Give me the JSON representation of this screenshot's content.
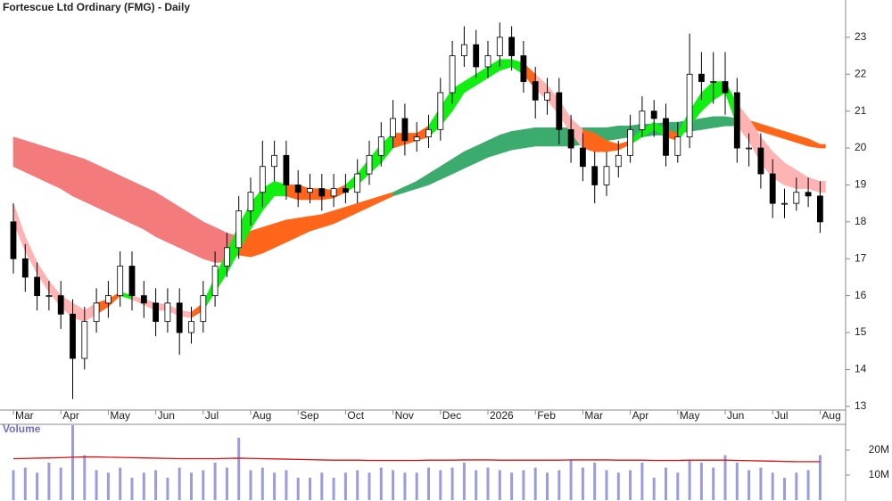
{
  "chart_data": [
    {
      "type": "candlestick",
      "title": "Fortescue Ltd Ordinary (FMG) - Daily",
      "categories": [
        "Mar",
        null,
        null,
        null,
        "Apr",
        null,
        null,
        null,
        "May",
        null,
        null,
        null,
        "Jun",
        null,
        null,
        null,
        "Jul",
        null,
        null,
        null,
        "Aug",
        null,
        null,
        null,
        "Sep",
        null,
        null,
        null,
        "Oct",
        null,
        null,
        null,
        "Nov",
        null,
        null,
        null,
        "Dec",
        null,
        null,
        null,
        "2026",
        null,
        null,
        null,
        "Feb",
        null,
        null,
        null,
        "Mar",
        null,
        null,
        null,
        "Apr",
        null,
        null,
        null,
        "May",
        null,
        null,
        null,
        "Jun",
        null,
        null,
        null,
        "Jul",
        null,
        null,
        null,
        "Aug"
      ],
      "open": [
        18.0,
        17.0,
        16.5,
        16.0,
        16.0,
        15.5,
        14.3,
        15.3,
        15.8,
        16.0,
        16.8,
        16.0,
        15.8,
        15.3,
        15.8,
        15.0,
        15.3,
        16.0,
        16.8,
        17.3,
        18.3,
        18.8,
        19.5,
        19.8,
        19.0,
        18.8,
        18.9,
        18.7,
        18.9,
        18.8,
        19.3,
        19.8,
        20.3,
        20.8,
        20.2,
        20.3,
        20.5,
        21.5,
        22.5,
        22.8,
        22.2,
        22.5,
        23.0,
        22.5,
        21.8,
        21.3,
        21.5,
        20.5,
        20.0,
        19.5,
        19.0,
        19.5,
        19.8,
        20.5,
        21.0,
        20.8,
        19.8,
        20.3,
        22.0,
        21.8,
        21.8,
        21.5,
        20.0,
        20.0,
        19.3,
        18.5,
        18.5,
        18.8,
        18.7
      ],
      "high": [
        18.5,
        17.4,
        16.9,
        16.4,
        16.4,
        15.9,
        15.7,
        16.2,
        16.4,
        17.2,
        17.2,
        16.4,
        16.2,
        16.2,
        16.2,
        15.7,
        16.4,
        17.2,
        17.7,
        18.7,
        19.2,
        20.2,
        20.2,
        20.2,
        19.4,
        19.3,
        19.3,
        19.3,
        19.3,
        19.7,
        20.2,
        20.7,
        21.3,
        21.2,
        20.7,
        20.9,
        21.9,
        22.9,
        23.3,
        23.2,
        22.9,
        23.4,
        23.3,
        22.9,
        22.2,
        21.9,
        21.9,
        20.9,
        20.4,
        19.9,
        19.9,
        20.2,
        20.9,
        21.4,
        21.3,
        21.2,
        20.7,
        23.1,
        22.6,
        22.6,
        22.6,
        21.9,
        20.4,
        20.4,
        19.7,
        18.9,
        19.2,
        19.2,
        19.1
      ],
      "low": [
        16.6,
        16.1,
        15.6,
        15.6,
        15.1,
        13.2,
        14.0,
        15.0,
        15.4,
        15.7,
        15.6,
        15.4,
        14.9,
        15.0,
        14.4,
        14.7,
        15.0,
        15.7,
        16.5,
        17.0,
        17.9,
        18.4,
        19.1,
        18.6,
        18.4,
        18.5,
        18.3,
        18.4,
        18.5,
        18.5,
        19.0,
        19.5,
        20.0,
        19.8,
        19.9,
        20.0,
        20.2,
        21.2,
        22.2,
        21.9,
        21.9,
        22.2,
        22.1,
        21.5,
        20.8,
        20.9,
        20.1,
        19.6,
        19.1,
        18.5,
        18.7,
        19.2,
        19.6,
        20.3,
        20.3,
        19.5,
        19.6,
        20.0,
        21.3,
        21.2,
        20.9,
        19.6,
        19.5,
        18.9,
        18.1,
        18.1,
        18.3,
        18.4,
        17.7
      ],
      "close": [
        17.0,
        16.5,
        16.0,
        16.0,
        15.5,
        14.3,
        15.3,
        15.8,
        16.0,
        16.8,
        16.0,
        15.8,
        15.3,
        15.8,
        15.0,
        15.3,
        16.0,
        16.8,
        17.3,
        18.3,
        18.8,
        19.5,
        19.8,
        19.0,
        18.8,
        18.9,
        18.7,
        18.9,
        18.8,
        19.3,
        19.8,
        20.3,
        20.8,
        20.2,
        20.3,
        20.5,
        21.5,
        22.5,
        22.8,
        22.2,
        22.5,
        23.0,
        22.5,
        21.8,
        21.3,
        21.5,
        20.5,
        20.0,
        19.5,
        19.0,
        19.5,
        19.8,
        20.5,
        21.0,
        20.8,
        19.8,
        20.3,
        22.0,
        21.8,
        21.8,
        21.5,
        20.0,
        20.0,
        19.3,
        18.5,
        18.5,
        18.8,
        18.7,
        18.0
      ],
      "up_color": "#ffffff",
      "down_color": "#000000",
      "wick_color": "#000000",
      "ribbons": [
        {
          "upper": [
            20.3,
            20.2,
            20.1,
            20.0,
            19.9,
            19.8,
            19.7,
            19.55,
            19.4,
            19.25,
            19.1,
            18.95,
            18.8,
            18.6,
            18.4,
            18.2,
            18.0,
            17.85,
            17.7,
            17.6,
            17.75,
            17.85,
            17.95,
            18.05,
            18.1,
            18.15,
            18.2,
            18.3,
            18.4,
            18.5,
            18.6,
            18.7,
            18.8,
            18.95,
            19.1,
            19.3,
            19.5,
            19.7,
            19.9,
            20.05,
            20.2,
            20.35,
            20.45,
            20.5,
            20.55,
            20.55,
            20.55,
            20.55,
            20.55,
            20.55,
            20.55,
            20.6,
            20.6,
            20.65,
            20.65,
            20.7,
            20.7,
            20.75,
            20.8,
            20.85,
            20.85,
            20.8,
            20.75,
            20.65,
            20.55,
            20.45,
            20.35,
            20.25,
            20.1
          ],
          "lower": [
            19.5,
            19.35,
            19.2,
            19.05,
            18.9,
            18.7,
            18.55,
            18.4,
            18.25,
            18.1,
            17.95,
            17.8,
            17.6,
            17.45,
            17.3,
            17.15,
            17.0,
            16.9,
            16.9,
            17.1,
            17.05,
            17.15,
            17.3,
            17.45,
            17.6,
            17.75,
            17.85,
            17.95,
            18.1,
            18.25,
            18.4,
            18.55,
            18.7,
            18.8,
            18.9,
            19.0,
            19.15,
            19.3,
            19.45,
            19.6,
            19.75,
            19.85,
            19.95,
            20.0,
            20.05,
            20.05,
            20.05,
            20.05,
            20.1,
            20.15,
            20.2,
            20.25,
            20.3,
            20.3,
            20.35,
            20.35,
            20.4,
            20.45,
            20.5,
            20.55,
            20.6,
            20.6,
            20.55,
            20.45,
            20.35,
            20.25,
            20.15,
            20.05,
            20.0
          ],
          "colors": [
            "#f47b7b",
            "#f47b7b",
            "#f47b7b",
            "#f47b7b",
            "#f47b7b",
            "#f47b7b",
            "#f47b7b",
            "#f47b7b",
            "#f47b7b",
            "#f47b7b",
            "#f47b7b",
            "#f47b7b",
            "#f47b7b",
            "#f47b7b",
            "#f47b7b",
            "#f47b7b",
            "#f47b7b",
            "#f47b7b",
            "#f47b7b",
            "#ff6619",
            "#ff6619",
            "#ff6619",
            "#ff6619",
            "#ff6619",
            "#ff6619",
            "#ff6619",
            "#ff6619",
            "#ff6619",
            "#ff6619",
            "#ff6619",
            "#ff6619",
            "#ff6619",
            "#3cab6e",
            "#3cab6e",
            "#3cab6e",
            "#3cab6e",
            "#3cab6e",
            "#3cab6e",
            "#3cab6e",
            "#3cab6e",
            "#3cab6e",
            "#3cab6e",
            "#3cab6e",
            "#3cab6e",
            "#3cab6e",
            "#3cab6e",
            "#3cab6e",
            "#3cab6e",
            "#3cab6e",
            "#3cab6e",
            "#3cab6e",
            "#3cab6e",
            "#3cab6e",
            "#3cab6e",
            "#3cab6e",
            "#3cab6e",
            "#3cab6e",
            "#3cab6e",
            "#3cab6e",
            "#3cab6e",
            "#3cab6e",
            "#3cab6e",
            "#ff6619",
            "#ff6619",
            "#ff6619",
            "#ff6619",
            "#ff6619",
            "#ff6619",
            "#ff6619"
          ]
        },
        {
          "upper": [
            18.5,
            17.6,
            16.9,
            16.4,
            16.0,
            15.8,
            15.6,
            15.8,
            15.9,
            16.1,
            16.0,
            15.9,
            15.8,
            15.75,
            15.6,
            15.55,
            15.8,
            16.5,
            17.2,
            17.9,
            18.5,
            18.9,
            19.1,
            19.0,
            19.0,
            18.9,
            18.9,
            18.85,
            19.0,
            19.3,
            19.7,
            20.1,
            20.4,
            20.4,
            20.4,
            20.6,
            21.1,
            21.6,
            21.8,
            22.0,
            22.2,
            22.4,
            22.4,
            22.3,
            22.0,
            21.7,
            21.3,
            20.8,
            20.5,
            20.4,
            20.2,
            20.1,
            20.2,
            20.5,
            20.7,
            20.5,
            20.4,
            21.0,
            21.5,
            21.8,
            21.8,
            21.2,
            20.8,
            20.3,
            19.9,
            19.6,
            19.4,
            19.2,
            19.1
          ],
          "lower": [
            18.0,
            17.2,
            16.6,
            16.1,
            15.7,
            15.4,
            15.3,
            15.5,
            15.7,
            16.0,
            15.9,
            15.75,
            15.6,
            15.6,
            15.45,
            15.4,
            15.6,
            16.1,
            16.6,
            17.2,
            17.8,
            18.3,
            18.7,
            18.7,
            18.6,
            18.6,
            18.6,
            18.65,
            18.8,
            19.0,
            19.3,
            19.6,
            20.0,
            20.1,
            20.2,
            20.3,
            20.6,
            21.0,
            21.5,
            21.7,
            21.9,
            22.1,
            22.2,
            22.0,
            21.6,
            21.3,
            20.9,
            20.4,
            20.0,
            19.9,
            19.9,
            19.95,
            20.1,
            20.3,
            20.5,
            20.3,
            20.2,
            20.6,
            21.0,
            21.3,
            21.5,
            20.6,
            20.2,
            19.6,
            19.2,
            19.0,
            18.9,
            18.9,
            18.8
          ],
          "colors": [
            "#ffb3b3",
            "#ffb3b3",
            "#ffb3b3",
            "#ffb3b3",
            "#ffb3b3",
            "#ffb3b3",
            "#ffb3b3",
            "#ff6619",
            "#ff6619",
            "#11ee11",
            "#ffb3b3",
            "#ffb3b3",
            "#ffb3b3",
            "#ffb3b3",
            "#ffb3b3",
            "#ff6619",
            "#11ee11",
            "#11ee11",
            "#11ee11",
            "#11ee11",
            "#11ee11",
            "#11ee11",
            "#11ee11",
            "#ff6619",
            "#ff6619",
            "#ff6619",
            "#ff6619",
            "#ff6619",
            "#11ee11",
            "#11ee11",
            "#11ee11",
            "#11ee11",
            "#ff6619",
            "#ff6619",
            "#ff6619",
            "#11ee11",
            "#11ee11",
            "#11ee11",
            "#11ee11",
            "#11ee11",
            "#11ee11",
            "#11ee11",
            "#11ee11",
            "#ff6619",
            "#ffb3b3",
            "#ffb3b3",
            "#ffb3b3",
            "#ffb3b3",
            "#ff6619",
            "#ff6619",
            "#ff6619",
            "#ff6619",
            "#11ee11",
            "#11ee11",
            "#11ee11",
            "#ff6619",
            "#11ee11",
            "#11ee11",
            "#11ee11",
            "#11ee11",
            "#11ee11",
            "#ffb3b3",
            "#ffb3b3",
            "#ffb3b3",
            "#ffb3b3",
            "#ffb3b3",
            "#ffb3b3",
            "#ffb3b3",
            "#ffb3b3"
          ]
        }
      ],
      "ylim": [
        12.9,
        23.6
      ],
      "yticks": [
        13,
        14,
        15,
        16,
        17,
        18,
        19,
        20,
        21,
        22,
        23
      ]
    },
    {
      "type": "bar",
      "title": "Volume",
      "values": [
        12,
        13,
        11,
        15,
        13,
        30,
        18,
        12,
        11,
        13,
        9,
        11,
        12,
        9,
        13,
        11,
        12,
        15,
        13,
        25,
        12,
        13,
        11,
        12,
        9,
        9,
        11,
        9,
        11,
        12,
        11,
        13,
        12,
        11,
        11,
        13,
        12,
        13,
        15,
        12,
        13,
        12,
        11,
        12,
        13,
        11,
        12,
        16,
        13,
        15,
        12,
        11,
        12,
        15,
        9,
        13,
        11,
        16,
        15,
        13,
        18,
        15,
        12,
        13,
        11,
        9,
        11,
        12,
        18
      ],
      "color": "#9b9be0",
      "average": {
        "values": [
          16.6,
          16.7,
          16.8,
          16.9,
          17.0,
          17.2,
          17.3,
          17.3,
          17.2,
          17.1,
          17.0,
          16.9,
          16.8,
          16.7,
          16.6,
          16.6,
          16.6,
          16.6,
          16.7,
          16.8,
          16.7,
          16.6,
          16.5,
          16.4,
          16.3,
          16.2,
          16.1,
          16.0,
          16.0,
          16.0,
          15.9,
          15.9,
          15.9,
          15.9,
          15.9,
          16.0,
          16.0,
          16.0,
          16.1,
          16.1,
          16.1,
          16.0,
          16.0,
          16.0,
          16.0,
          16.0,
          16.0,
          16.1,
          16.1,
          16.1,
          16.1,
          16.0,
          16.0,
          16.0,
          15.9,
          15.9,
          15.9,
          16.0,
          16.0,
          16.0,
          16.0,
          15.9,
          15.8,
          15.7,
          15.6,
          15.5,
          15.4,
          15.4,
          15.4
        ],
        "color": "#dd1111"
      },
      "ylim": [
        0,
        30
      ],
      "yticks": [
        {
          "value": 10,
          "label": "10M"
        },
        {
          "value": 20,
          "label": "20M"
        }
      ]
    }
  ]
}
